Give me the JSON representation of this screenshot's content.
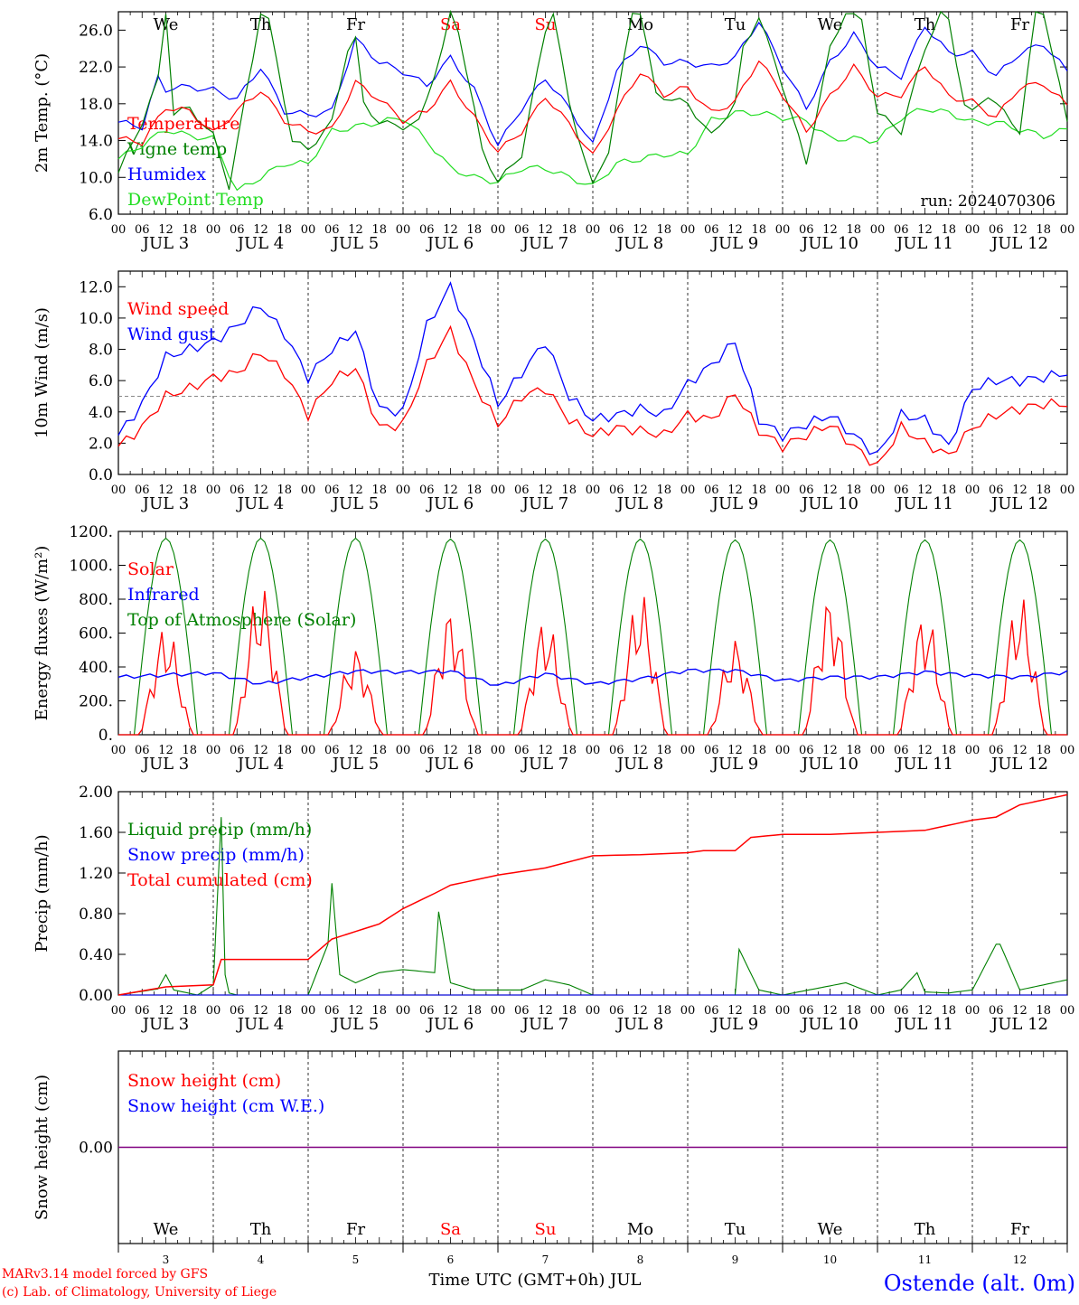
{
  "run_label": "run: 2024070306",
  "footer": {
    "credit_line1": "MARv3.14 model forced by GFS",
    "credit_line2": "(c) Lab. of Climatology, University of Liege",
    "xlabel": "Time UTC (GMT+0h) JUL",
    "station": "Ostende (alt. 0m)"
  },
  "days": {
    "weekday": [
      "We",
      "Th",
      "Fr",
      "Sa",
      "Su",
      "Mo",
      "Tu",
      "We",
      "Th",
      "Fr"
    ],
    "weekend_flags": [
      false,
      false,
      false,
      true,
      true,
      false,
      false,
      false,
      false,
      false
    ],
    "date_labels": [
      "JUL  3",
      "JUL  4",
      "JUL  5",
      "JUL  6",
      "JUL  7",
      "JUL  8",
      "JUL  9",
      "JUL 10",
      "JUL 11",
      "JUL 12"
    ],
    "day_numbers": [
      "3",
      "4",
      "5",
      "6",
      "7",
      "8",
      "9",
      "10",
      "11",
      "12"
    ],
    "hour_ticks": [
      "00",
      "06",
      "12",
      "18"
    ],
    "final_hour_tick": "00"
  },
  "colors": {
    "red": "#ff0000",
    "dark_green": "#008000",
    "light_green": "#22dd22",
    "blue": "#0000ff",
    "purple": "#800080",
    "gray": "#888888"
  },
  "chart_data": [
    {
      "type": "line",
      "ylabel": "2m Temp. (°C)",
      "ylim": [
        6,
        28
      ],
      "yticks": [
        "6.0",
        "10.0",
        "14.0",
        "18.0",
        "22.0",
        "26.0"
      ],
      "x_unit": "hours since Jul 3 00 UTC",
      "grid": "dashed day separators",
      "legend": "top-left",
      "series": [
        {
          "name": "Temperature",
          "color": "#ff0000",
          "x": [
            0,
            6,
            12,
            18,
            24,
            30,
            36,
            42,
            48,
            54,
            60,
            66,
            72,
            78,
            84,
            90,
            96,
            102,
            108,
            114,
            120,
            126,
            132,
            138,
            144,
            150,
            156,
            162,
            168,
            174,
            180,
            186,
            192,
            198,
            204,
            210,
            216,
            222,
            228,
            234,
            240
          ],
          "values": [
            14.2,
            13.8,
            17.6,
            17.2,
            14.8,
            17.2,
            19.5,
            16.2,
            15.0,
            15.2,
            20.3,
            18.5,
            16.2,
            17.2,
            20.3,
            16.5,
            12.8,
            15.0,
            18.8,
            15.8,
            12.3,
            17.2,
            21.5,
            19.0,
            19.8,
            17.0,
            18.2,
            22.8,
            19.0,
            15.0,
            18.8,
            22.0,
            18.8,
            19.0,
            22.2,
            18.8,
            18.2,
            16.5,
            19.8,
            20.2,
            17.8
          ]
        },
        {
          "name": "Vigne temp",
          "color": "#008000",
          "x": [
            0,
            6,
            10,
            12,
            14,
            18,
            24,
            28,
            34,
            36,
            38,
            44,
            48,
            54,
            58,
            60,
            62,
            66,
            72,
            76,
            82,
            84,
            86,
            92,
            96,
            102,
            108,
            110,
            114,
            120,
            124,
            130,
            132,
            136,
            144,
            150,
            156,
            158,
            162,
            168,
            174,
            180,
            184,
            188,
            192,
            198,
            204,
            208,
            210,
            214,
            216,
            220,
            228,
            232,
            234,
            240
          ],
          "values": [
            10.5,
            16.0,
            20.5,
            28.0,
            17.0,
            17.5,
            14.5,
            9.0,
            23.0,
            28,
            27.0,
            14.0,
            13.0,
            16.0,
            24.0,
            25.0,
            18.0,
            16.0,
            15.5,
            16.0,
            24.0,
            28,
            26.0,
            13.0,
            9.5,
            12.5,
            26.0,
            28,
            18.0,
            9.0,
            13.0,
            28,
            28,
            19.0,
            18.0,
            14.5,
            18.0,
            24.0,
            27.5,
            20.0,
            11.5,
            24.0,
            28,
            27.0,
            17.0,
            15.0,
            24.0,
            28,
            27.0,
            18.0,
            17.0,
            19.0,
            15.0,
            28,
            28,
            16.0
          ]
        },
        {
          "name": "Humidex",
          "color": "#0000ff",
          "x": [
            0,
            6,
            10,
            12,
            14,
            18,
            24,
            30,
            36,
            42,
            48,
            54,
            60,
            66,
            72,
            78,
            84,
            90,
            96,
            102,
            108,
            114,
            120,
            126,
            132,
            138,
            144,
            150,
            156,
            162,
            168,
            174,
            180,
            186,
            192,
            198,
            204,
            210,
            216,
            222,
            228,
            234,
            240
          ],
          "values": [
            16.0,
            15.5,
            20.8,
            19.5,
            19.8,
            19.8,
            19.5,
            18.5,
            22.0,
            17.2,
            16.8,
            17.2,
            25.0,
            22.5,
            21.5,
            20.0,
            23.0,
            19.5,
            13.5,
            17.5,
            20.8,
            17.5,
            13.5,
            21.5,
            24.5,
            22.5,
            22.5,
            22.0,
            23.0,
            27.0,
            22.0,
            17.5,
            22.5,
            25.5,
            22.0,
            21.0,
            26.5,
            23.5,
            23.5,
            21.0,
            23.5,
            24.5,
            21.5
          ]
        },
        {
          "name": "DewPoint Temp",
          "color": "#22dd22",
          "x": [
            0,
            6,
            12,
            18,
            24,
            30,
            36,
            42,
            48,
            54,
            60,
            66,
            72,
            78,
            84,
            90,
            96,
            102,
            108,
            114,
            120,
            126,
            132,
            138,
            144,
            150,
            156,
            162,
            168,
            174,
            180,
            186,
            192,
            198,
            204,
            210,
            216,
            222,
            228,
            234,
            240
          ],
          "values": [
            12.0,
            13.5,
            15.2,
            14.5,
            14.2,
            8.5,
            10.0,
            11.5,
            11.5,
            15.0,
            15.5,
            16.0,
            16.5,
            14.0,
            11.0,
            10.0,
            9.5,
            11.0,
            11.0,
            10.0,
            9.0,
            11.5,
            12.0,
            12.5,
            12.5,
            16.2,
            17.0,
            17.0,
            16.5,
            16.2,
            14.2,
            14.2,
            14.0,
            16.5,
            17.5,
            17.0,
            16.0,
            16.0,
            15.2,
            14.5,
            15.2
          ]
        }
      ]
    },
    {
      "type": "line",
      "ylabel": "10m Wind (m/s)",
      "ylim": [
        0,
        13
      ],
      "yticks": [
        "0.0",
        "2.0",
        "4.0",
        "6.0",
        "8.0",
        "10.0",
        "12.0"
      ],
      "reference_line": 5,
      "legend": "top-left",
      "series": [
        {
          "name": "Wind speed",
          "color": "#ff0000",
          "x": [
            0,
            6,
            12,
            18,
            24,
            30,
            36,
            42,
            48,
            54,
            60,
            66,
            72,
            78,
            84,
            90,
            96,
            102,
            108,
            114,
            120,
            126,
            132,
            138,
            144,
            150,
            156,
            162,
            168,
            174,
            180,
            186,
            192,
            198,
            204,
            210,
            216,
            222,
            228,
            234,
            240
          ],
          "values": [
            1.8,
            3.0,
            5.0,
            5.5,
            6.2,
            6.5,
            7.8,
            6.5,
            3.8,
            6.0,
            6.8,
            3.0,
            3.2,
            7.0,
            9.2,
            5.8,
            3.2,
            5.0,
            5.5,
            3.5,
            2.5,
            3.0,
            2.8,
            2.5,
            3.8,
            3.5,
            5.2,
            2.8,
            1.8,
            2.5,
            3.2,
            1.8,
            0.5,
            3.0,
            2.0,
            1.2,
            3.0,
            3.8,
            4.2,
            4.5,
            4.5
          ]
        },
        {
          "name": "Wind gust",
          "color": "#0000ff",
          "x": [
            0,
            6,
            12,
            18,
            24,
            30,
            36,
            42,
            48,
            54,
            60,
            66,
            72,
            78,
            84,
            90,
            96,
            102,
            108,
            114,
            120,
            126,
            132,
            138,
            144,
            150,
            156,
            162,
            168,
            174,
            180,
            186,
            192,
            198,
            204,
            210,
            216,
            222,
            228,
            234,
            240
          ],
          "values": [
            2.5,
            4.5,
            7.5,
            8.0,
            8.5,
            9.5,
            10.8,
            9.0,
            6.2,
            8.0,
            9.2,
            4.2,
            4.0,
            9.5,
            12.0,
            8.5,
            4.5,
            6.5,
            8.5,
            5.0,
            3.5,
            3.8,
            4.2,
            3.8,
            5.8,
            7.0,
            8.5,
            3.5,
            2.5,
            3.2,
            3.8,
            2.5,
            1.2,
            3.8,
            3.5,
            1.8,
            5.5,
            6.0,
            6.0,
            6.2,
            6.5
          ]
        }
      ]
    },
    {
      "type": "line",
      "ylabel": "Energy fluxes (W/m²)",
      "ylim": [
        0,
        1200
      ],
      "yticks": [
        "0.",
        "200.",
        "400.",
        "600.",
        "800.",
        "1000.",
        "1200."
      ],
      "legend": "top-left",
      "series": [
        {
          "name": "Solar",
          "color": "#ff0000",
          "daily_peak_values": [
            650,
            900,
            520,
            760,
            700,
            850,
            570,
            840,
            740,
            830
          ]
        },
        {
          "name": "Infrared",
          "color": "#0000ff",
          "x": [
            0,
            24,
            36,
            48,
            60,
            72,
            84,
            96,
            108,
            120,
            132,
            144,
            156,
            168,
            180,
            192,
            204,
            216,
            228,
            240
          ],
          "values": [
            340,
            365,
            300,
            340,
            375,
            370,
            375,
            290,
            360,
            300,
            330,
            380,
            380,
            320,
            340,
            340,
            370,
            350,
            340,
            370
          ]
        },
        {
          "name": "Top of Atmosphere (Solar)",
          "color": "#008000",
          "daily_peak_values": [
            1160,
            1160,
            1160,
            1155,
            1155,
            1155,
            1150,
            1150,
            1150,
            1150
          ],
          "sunrise_hour": 4,
          "sunset_hour": 20
        }
      ]
    },
    {
      "type": "line",
      "ylabel": "Precip (mm/h)",
      "ylim": [
        0,
        2
      ],
      "yticks": [
        "0.00",
        "0.40",
        "0.80",
        "1.20",
        "1.60",
        "2.00"
      ],
      "legend": "top-left",
      "series": [
        {
          "name": "Liquid precip (mm/h)",
          "color": "#008000",
          "x": [
            0,
            10,
            12,
            14,
            20,
            24,
            26,
            27,
            28,
            30,
            48,
            53,
            54,
            56,
            60,
            66,
            72,
            80,
            81,
            84,
            90,
            102,
            108,
            114,
            120,
            156,
            157,
            162,
            168,
            184,
            192,
            198,
            202,
            204,
            210,
            216,
            222,
            223,
            228,
            240
          ],
          "values": [
            0,
            0.06,
            0.2,
            0.05,
            0,
            0.1,
            1.75,
            0.2,
            0.02,
            0,
            0,
            0.5,
            1.1,
            0.2,
            0.12,
            0.22,
            0.25,
            0.22,
            0.82,
            0.12,
            0.05,
            0.05,
            0.15,
            0.1,
            0,
            0,
            0.45,
            0.05,
            0,
            0.12,
            0,
            0.05,
            0.22,
            0.03,
            0.02,
            0.05,
            0.5,
            0.5,
            0.05,
            0.15
          ]
        },
        {
          "name": "Snow precip (mm/h)",
          "color": "#0000ff",
          "x": [
            0,
            240
          ],
          "values": [
            0,
            0
          ]
        },
        {
          "name": "Total cumulated (cm)",
          "color": "#ff0000",
          "x": [
            0,
            12,
            24,
            26,
            48,
            54,
            66,
            72,
            80,
            84,
            96,
            108,
            120,
            132,
            144,
            148,
            156,
            160,
            168,
            180,
            192,
            204,
            216,
            222,
            228,
            240
          ],
          "values": [
            0,
            0.08,
            0.1,
            0.35,
            0.35,
            0.55,
            0.7,
            0.85,
            1.0,
            1.08,
            1.18,
            1.25,
            1.37,
            1.38,
            1.4,
            1.42,
            1.42,
            1.55,
            1.58,
            1.58,
            1.6,
            1.62,
            1.72,
            1.75,
            1.87,
            1.97
          ]
        }
      ]
    },
    {
      "type": "line",
      "ylabel": "Snow height (cm)",
      "ylim": [
        -1,
        1
      ],
      "yticks": [
        "0.00"
      ],
      "legend": "top-left",
      "series": [
        {
          "name": "Snow height (cm)",
          "color": "#ff0000",
          "x": [
            0,
            240
          ],
          "values": [
            0,
            0
          ]
        },
        {
          "name": "Snow height (cm W.E.)",
          "color": "#0000ff",
          "x": [
            0,
            240
          ],
          "values": [
            0,
            0
          ]
        }
      ]
    }
  ]
}
